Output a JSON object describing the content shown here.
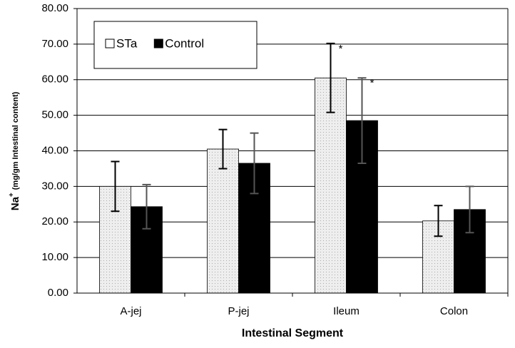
{
  "chart_data": {
    "type": "bar",
    "xlabel": "Intestinal Segment",
    "ylabel": {
      "base": "Na",
      "sup": "+",
      "unit": "(mg/gm Intestinal content)"
    },
    "categories": [
      "A-jej",
      "P-jej",
      "Ileum",
      "Colon"
    ],
    "series": [
      {
        "name": "STa",
        "color": "#e6e6e6",
        "values": [
          30,
          40.5,
          60.5,
          20.3
        ],
        "errors": [
          7,
          5.5,
          9.7,
          4.3
        ]
      },
      {
        "name": "Control",
        "color": "#000000",
        "values": [
          24.3,
          36.5,
          48.5,
          23.5
        ],
        "errors": [
          6.2,
          8.5,
          12,
          6.5
        ]
      }
    ],
    "annotations": [
      {
        "text": "*",
        "category": "Ileum",
        "series": "STa"
      },
      {
        "text": "*",
        "category": "Ileum",
        "series": "Control"
      }
    ],
    "ylim": [
      0,
      80
    ],
    "yticks": [
      {
        "value": 0,
        "label": "0.00"
      },
      {
        "value": 10,
        "label": "10.00"
      },
      {
        "value": 20,
        "label": "20.00"
      },
      {
        "value": 30,
        "label": "30.00"
      },
      {
        "value": 40,
        "label": "40.00"
      },
      {
        "value": 50,
        "label": "50.00"
      },
      {
        "value": 60,
        "label": "60.00"
      },
      {
        "value": 70,
        "label": "70.00"
      },
      {
        "value": 80,
        "label": "80.00"
      }
    ],
    "grid": true,
    "legend": "top-left"
  }
}
